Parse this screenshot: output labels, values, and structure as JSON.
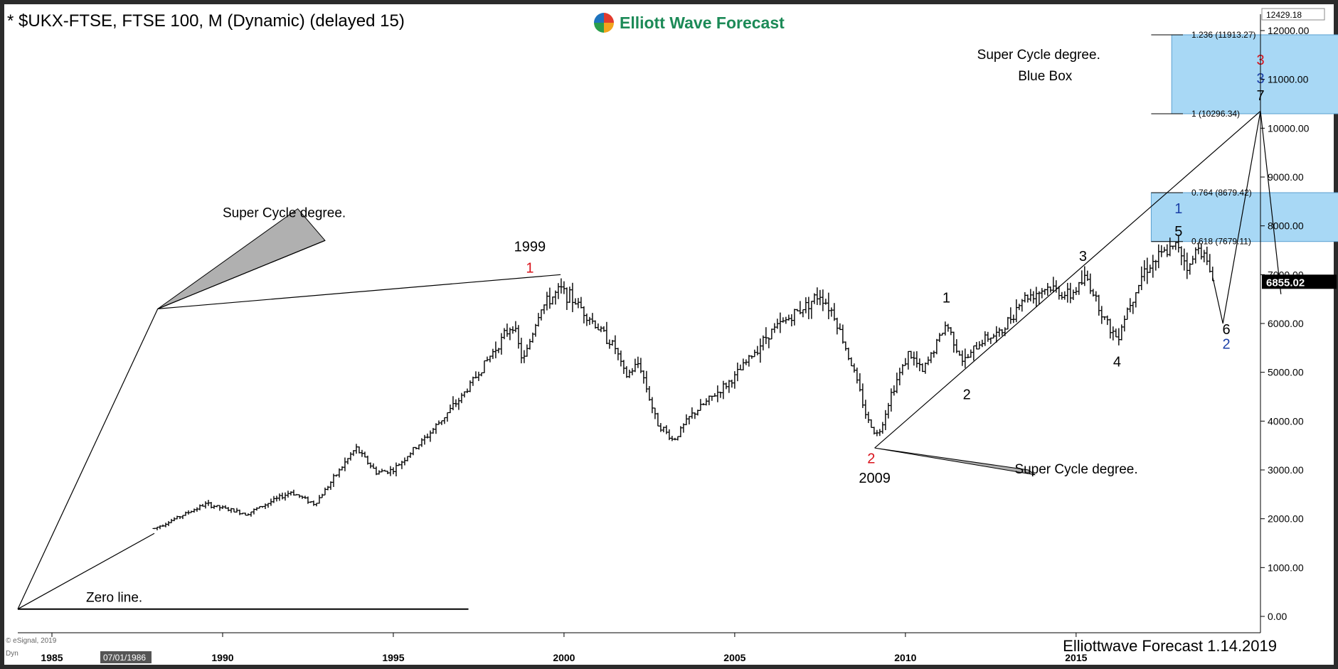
{
  "header": {
    "title": "* $UKX-FTSE, FTSE 100, M (Dynamic) (delayed 15)",
    "logo_text": "Elliott Wave Forecast",
    "footer_text": "Elliottwave Forecast 1.14.2019",
    "copyright": "© eSignal, 2019",
    "dyn_label": "Dyn"
  },
  "colors": {
    "bar": "#000000",
    "box_fill": "#a8d8f5",
    "box_stroke": "#5aa0d0",
    "red_label": "#d9121b",
    "blue_label": "#1a3fa6",
    "price_tag_bg": "#000000",
    "price_tag_fg": "#ffffff"
  },
  "chart_data": {
    "type": "ohlc",
    "title": "* $UKX-FTSE, FTSE 100, M (Dynamic) (delayed 15)",
    "xlabel": "",
    "ylabel": "",
    "xlim": [
      1984.0,
      2020.4
    ],
    "ylim": [
      0,
      12429.18
    ],
    "x_ticks": [
      "1985",
      "1990",
      "1995",
      "2000",
      "2005",
      "2010",
      "2015"
    ],
    "x_tick_values": [
      1985,
      1990,
      1995,
      2000,
      2005,
      2010,
      2015
    ],
    "cursor_date": "07/01/1986",
    "y_ticks": [
      "0.00",
      "1000.00",
      "2000.00",
      "3000.00",
      "4000.00",
      "5000.00",
      "6000.00",
      "7000.00",
      "8000.00",
      "9000.00",
      "10000.00",
      "11000.00",
      "12000.00"
    ],
    "y_tick_values": [
      0,
      1000,
      2000,
      3000,
      4000,
      5000,
      6000,
      7000,
      8000,
      9000,
      10000,
      11000,
      12000
    ],
    "top_value_label": "12429.18",
    "last_price": 6855.02,
    "last_price_label": "6855.02",
    "price_path": [
      [
        1988.0,
        1800
      ],
      [
        1989.5,
        2300
      ],
      [
        1990.7,
        2100
      ],
      [
        1992.0,
        2550
      ],
      [
        1992.7,
        2300
      ],
      [
        1993.9,
        3450
      ],
      [
        1994.5,
        2950
      ],
      [
        1995.0,
        3000
      ],
      [
        1996.0,
        3700
      ],
      [
        1997.0,
        4500
      ],
      [
        1997.8,
        5300
      ],
      [
        1998.5,
        6000
      ],
      [
        1998.8,
        5200
      ],
      [
        1999.3,
        6300
      ],
      [
        1999.9,
        6700
      ],
      [
        2000.4,
        6400
      ],
      [
        2001.5,
        5500
      ],
      [
        2001.8,
        4900
      ],
      [
        2002.2,
        5200
      ],
      [
        2002.7,
        4000
      ],
      [
        2003.2,
        3600
      ],
      [
        2003.7,
        4100
      ],
      [
        2005.0,
        4900
      ],
      [
        2006.0,
        5800
      ],
      [
        2007.5,
        6600
      ],
      [
        2007.9,
        6200
      ],
      [
        2008.5,
        5000
      ],
      [
        2008.9,
        4000
      ],
      [
        2009.2,
        3700
      ],
      [
        2009.6,
        4600
      ],
      [
        2010.1,
        5400
      ],
      [
        2010.5,
        5000
      ],
      [
        2011.2,
        6000
      ],
      [
        2011.7,
        5200
      ],
      [
        2012.3,
        5700
      ],
      [
        2012.8,
        5800
      ],
      [
        2013.4,
        6500
      ],
      [
        2014.2,
        6750
      ],
      [
        2014.8,
        6550
      ],
      [
        2015.3,
        6950
      ],
      [
        2015.9,
        6000
      ],
      [
        2016.2,
        5700
      ],
      [
        2016.5,
        6300
      ],
      [
        2017.0,
        7100
      ],
      [
        2017.5,
        7400
      ],
      [
        2018.0,
        7600
      ],
      [
        2018.3,
        7100
      ],
      [
        2018.6,
        7650
      ],
      [
        2018.9,
        7100
      ],
      [
        2019.05,
        6855
      ]
    ],
    "boxes": [
      {
        "x0": 2017.8,
        "x1": 2024.7,
        "y0": 10296.34,
        "y1": 11913.27
      },
      {
        "x0": 2017.2,
        "x1": 2024.1,
        "y0": 7679.11,
        "y1": 8679.42
      }
    ],
    "fib_levels": [
      {
        "label": "1.236 (11913.27)",
        "value": 11913.27
      },
      {
        "label": "1 (10296.34)",
        "value": 10296.34
      },
      {
        "label": "0.764 (8679.42)",
        "value": 8679.42
      },
      {
        "label": "0.618 (7679.11)",
        "value": 7679.11
      }
    ],
    "lines": [
      {
        "points": [
          [
            1984.0,
            150
          ],
          [
            1988.0,
            1700
          ]
        ]
      },
      {
        "points": [
          [
            1984.0,
            150
          ],
          [
            1988.1,
            6300
          ]
        ]
      },
      {
        "points": [
          [
            1988.1,
            6300
          ],
          [
            1999.9,
            7000
          ]
        ]
      },
      {
        "points": [
          [
            1988.1,
            6300
          ],
          [
            1993.0,
            7700
          ]
        ]
      },
      {
        "points": [
          [
            1984.0,
            150
          ],
          [
            1997.2,
            150
          ]
        ]
      },
      {
        "points": [
          [
            2009.1,
            3450
          ],
          [
            2020.4,
            10350
          ]
        ]
      },
      {
        "points": [
          [
            2019.0,
            6950
          ],
          [
            2019.3,
            6000
          ],
          [
            2020.4,
            10350
          ],
          [
            2021.0,
            6600
          ]
        ]
      }
    ],
    "wedges": [
      {
        "points": [
          [
            1988.1,
            6300
          ],
          [
            1992.2,
            8350
          ],
          [
            1993.0,
            7700
          ]
        ]
      },
      {
        "points": [
          [
            2009.1,
            3450
          ],
          [
            2013.6,
            3000
          ],
          [
            2013.8,
            2900
          ]
        ]
      }
    ],
    "labels": [
      {
        "text": "1999",
        "x": 1999.0,
        "y": 7480,
        "color": "black"
      },
      {
        "text": "1",
        "x": 1999.0,
        "y": 7040,
        "color": "red"
      },
      {
        "text": "2",
        "x": 2009.0,
        "y": 3140,
        "color": "red"
      },
      {
        "text": "2009",
        "x": 2009.1,
        "y": 2740,
        "color": "black"
      },
      {
        "text": "1",
        "x": 2011.2,
        "y": 6430,
        "color": "black"
      },
      {
        "text": "2",
        "x": 2011.8,
        "y": 4450,
        "color": "black"
      },
      {
        "text": "3",
        "x": 2015.2,
        "y": 7280,
        "color": "black"
      },
      {
        "text": "4",
        "x": 2016.2,
        "y": 5120,
        "color": "black"
      },
      {
        "text": "1",
        "x": 2018.0,
        "y": 8260,
        "color": "blue"
      },
      {
        "text": "5",
        "x": 2018.0,
        "y": 7790,
        "color": "black"
      },
      {
        "text": "6",
        "x": 2019.4,
        "y": 5780,
        "color": "black"
      },
      {
        "text": "2",
        "x": 2019.4,
        "y": 5480,
        "color": "blue"
      },
      {
        "text": "3",
        "x": 2020.4,
        "y": 11300,
        "color": "red"
      },
      {
        "text": "3",
        "x": 2020.4,
        "y": 10920,
        "color": "blue"
      },
      {
        "text": "7",
        "x": 2020.4,
        "y": 10570,
        "color": "black"
      }
    ],
    "annotations": [
      {
        "text": "Super Cycle  degree.",
        "x": 1990.0,
        "y": 8180
      },
      {
        "text": "Super Cycle  degree.",
        "x": 2013.2,
        "y": 2930
      },
      {
        "text": "Super Cycle  degree.",
        "x": 2012.1,
        "y": 11420
      },
      {
        "text": "Blue Box",
        "x": 2013.3,
        "y": 10980
      },
      {
        "text": "Zero line.",
        "x": 1986.0,
        "y": 300
      }
    ]
  }
}
